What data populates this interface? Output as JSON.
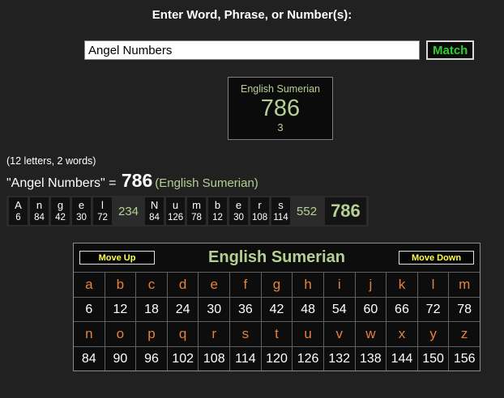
{
  "header": {
    "title": "Enter Word, Phrase, or Number(s):"
  },
  "search": {
    "input_value": "Angel Numbers",
    "match_label": "Match"
  },
  "result_box": {
    "cipher_name": "English Sumerian",
    "value": "786",
    "match_count": "3"
  },
  "summary": {
    "note": "(12 letters, 2 words)",
    "phrase": "\"Angel Numbers\"",
    "equals": " = ",
    "value": "786",
    "cipher": "(English Sumerian)"
  },
  "breakdown": {
    "words": [
      {
        "letters": [
          "A",
          "n",
          "g",
          "e",
          "l"
        ],
        "values": [
          6,
          84,
          42,
          30,
          72
        ],
        "subtotal": "234"
      },
      {
        "letters": [
          "N",
          "u",
          "m",
          "b",
          "e",
          "r",
          "s"
        ],
        "values": [
          84,
          126,
          78,
          12,
          30,
          108,
          114
        ],
        "subtotal": "552"
      }
    ],
    "total": "786"
  },
  "cipher_table": {
    "move_up_label": "Move Up",
    "title": "English Sumerian",
    "move_down_label": "Move Down",
    "rows": [
      {
        "letters": [
          "a",
          "b",
          "c",
          "d",
          "e",
          "f",
          "g",
          "h",
          "i",
          "j",
          "k",
          "l",
          "m"
        ],
        "values": [
          6,
          12,
          18,
          24,
          30,
          36,
          42,
          48,
          54,
          60,
          66,
          72,
          78
        ]
      },
      {
        "letters": [
          "n",
          "o",
          "p",
          "q",
          "r",
          "s",
          "t",
          "u",
          "v",
          "w",
          "x",
          "y",
          "z"
        ],
        "values": [
          84,
          90,
          96,
          102,
          108,
          114,
          120,
          126,
          132,
          138,
          144,
          150,
          156
        ]
      }
    ]
  },
  "colors": {
    "page_bg": "#212121",
    "panel_bg": "#0d0d0d",
    "pale_green": "#b6cf92",
    "match_green": "#2dcf2d",
    "letter_orange": "#e6813c",
    "button_yellow": "#ffff4d",
    "text_white": "#ffffff"
  }
}
